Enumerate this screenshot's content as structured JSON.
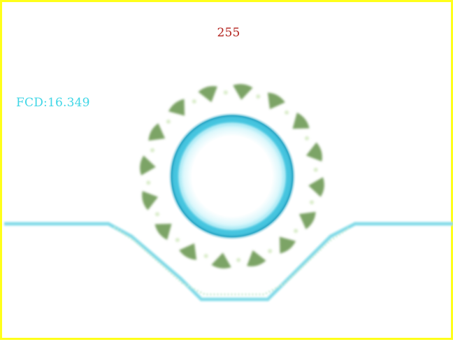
{
  "overlay": {
    "top_value": "255",
    "fcd_label": "FCD:16.349"
  },
  "colors": {
    "frame_border": "#ffff1a",
    "top_value_text": "#b3221d",
    "fcd_text": "#3fd6e6",
    "bearing_inner_ring": "#35c4e0",
    "bearing_segments": "#6f9a55",
    "groove_line": "#7fdbe8"
  },
  "scene": {
    "description_icon": "bearing-ring-icon"
  }
}
